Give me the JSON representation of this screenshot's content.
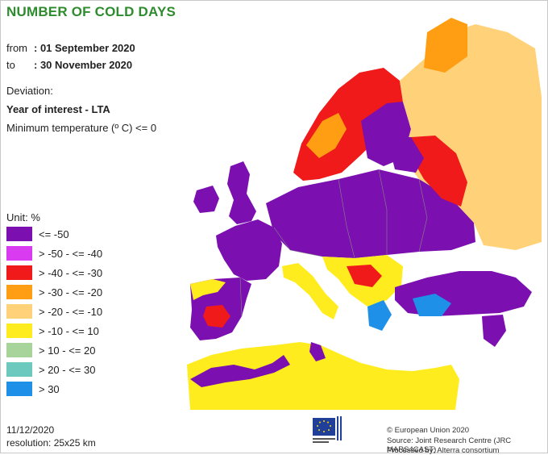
{
  "title": "NUMBER OF COLD DAYS",
  "period": {
    "from_label": "from",
    "from_value": ": 01 September 2020",
    "to_label": "to",
    "to_value": ": 30 November 2020"
  },
  "deviation_label": "Deviation:",
  "comparison": "Year of interest - LTA",
  "variable": "Minimum temperature (º C) <= 0",
  "legend": {
    "title": "Unit: %",
    "items": [
      {
        "label": "<= -50",
        "color": "#7b0fb0"
      },
      {
        "label": "> -50 - <= -40",
        "color": "#d93cf0"
      },
      {
        "label": "> -40 - <= -30",
        "color": "#f01a1a"
      },
      {
        "label": "> -30 - <= -20",
        "color": "#ff9e12"
      },
      {
        "label": "> -20 - <= -10",
        "color": "#ffd27a"
      },
      {
        "label": "> -10 - <= 10",
        "color": "#ffec1f"
      },
      {
        "label": "> 10 - <= 20",
        "color": "#a7d49b"
      },
      {
        "label": "> 20 - <= 30",
        "color": "#6cc9be"
      },
      {
        "label": "> 30",
        "color": "#1e90e8"
      }
    ]
  },
  "footer": {
    "date": "11/12/2020",
    "resolution": "resolution: 25x25 km",
    "copyright": "© European Union 2020",
    "source": "Source: Joint Research Centre (JRC MARS4CAST)",
    "processed": "Processed by: Alterra consortium",
    "logo_text": "European Commission"
  },
  "colors": {
    "title": "#2e8b2e",
    "sea": "#ffffff",
    "border": "#888888"
  }
}
